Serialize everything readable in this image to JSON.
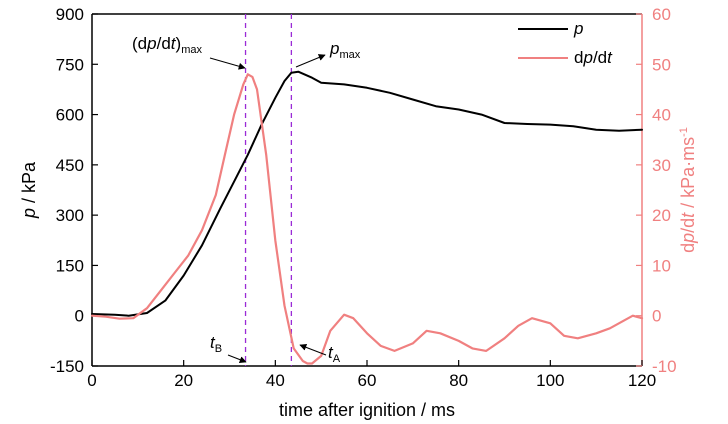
{
  "chart_data": {
    "type": "line",
    "xlabel": "time after ignition / ms",
    "ylabel_left": {
      "italic": "p",
      "rest": " / kPa"
    },
    "ylabel_right": {
      "prefix": "d",
      "italic": "p",
      "mid": "/d",
      "italic2": "t",
      "rest": " / kPa·ms",
      "sup": "-1"
    },
    "xlim": [
      0,
      120
    ],
    "xticks": [
      0,
      20,
      40,
      60,
      80,
      100,
      120
    ],
    "ylim_left": [
      -150,
      900
    ],
    "yticks_left": [
      -150,
      0,
      150,
      300,
      450,
      600,
      750,
      900
    ],
    "ylim_right": [
      -10,
      60
    ],
    "yticks_right": [
      -10,
      0,
      10,
      20,
      30,
      40,
      50,
      60
    ],
    "grid": false,
    "legend_position": "top-right",
    "colors": {
      "p": "#000000",
      "dpdt": "#f08080",
      "markers": "#9a2bd6"
    },
    "series": [
      {
        "name": "p",
        "legend_italic": "p",
        "axis": "left",
        "x": [
          0,
          5,
          8,
          12,
          16,
          20,
          24,
          28,
          31,
          34,
          37,
          40,
          42,
          43.5,
          45,
          48,
          50,
          55,
          60,
          65,
          70,
          75,
          80,
          85,
          90,
          95,
          100,
          105,
          110,
          115,
          120
        ],
        "values": [
          5,
          3,
          0,
          8,
          45,
          120,
          210,
          320,
          400,
          480,
          570,
          650,
          700,
          725,
          728,
          710,
          695,
          690,
          680,
          665,
          645,
          625,
          615,
          600,
          575,
          572,
          570,
          565,
          555,
          552,
          555
        ]
      },
      {
        "name": "dp/dt",
        "legend_italic": "p",
        "axis": "right",
        "x": [
          0,
          3,
          6,
          9,
          12,
          15,
          18,
          21,
          24,
          27,
          29,
          31,
          33,
          34,
          35,
          36,
          38,
          40,
          42,
          44,
          46,
          47,
          48,
          50,
          52,
          55,
          57,
          60,
          63,
          66,
          70,
          73,
          76,
          80,
          83,
          86,
          90,
          93,
          96,
          100,
          103,
          106,
          110,
          113,
          116,
          118,
          120
        ],
        "values": [
          0,
          -0.2,
          -0.6,
          -0.5,
          1.5,
          5,
          8.5,
          12,
          17,
          24,
          32,
          40,
          46,
          48,
          47.5,
          45,
          32,
          15,
          2,
          -6.5,
          -9,
          -9.5,
          -9.5,
          -8,
          -3,
          0.2,
          -0.5,
          -3.5,
          -6,
          -7,
          -5.5,
          -3,
          -3.5,
          -5,
          -6.5,
          -7,
          -4.5,
          -2,
          -0.5,
          -1.5,
          -4,
          -4.5,
          -3.5,
          -2.5,
          -1,
          0,
          -0.5
        ]
      }
    ],
    "markers": [
      {
        "label_main": "t",
        "label_sub": "B",
        "x": 33.5
      },
      {
        "label_main": "t",
        "label_sub": "A",
        "x": 43.5
      }
    ],
    "annotations": [
      {
        "text_prefix": "(d",
        "italic1": "p",
        "mid": "/d",
        "italic2": "t",
        "suffix": ")",
        "sub": "max"
      },
      {
        "italic": "p",
        "sub": "max"
      }
    ]
  }
}
